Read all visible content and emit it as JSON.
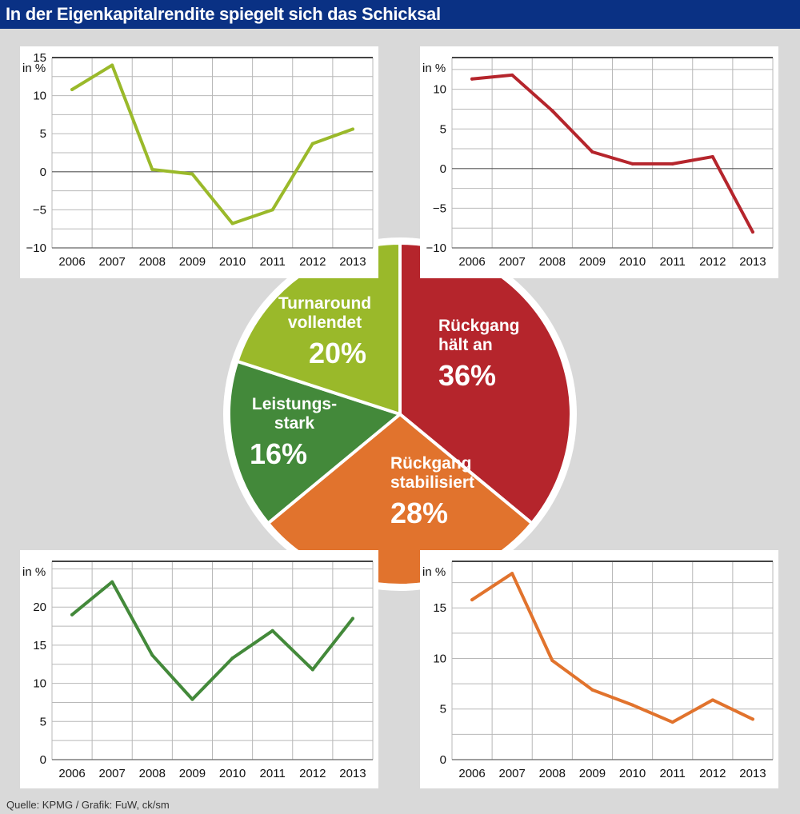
{
  "header": {
    "title": "In der Eigenkapitalrendite spiegelt sich das Schicksal",
    "bar_color": "#0a3184"
  },
  "source": "Quelle: KPMG / Grafik: FuW, ck/sm",
  "chart_data": [
    {
      "type": "pie",
      "title": "",
      "slices": [
        {
          "label_lines": [
            "Rückgang",
            "hält an"
          ],
          "value": 36,
          "value_label": "36%",
          "color": "#b5252c"
        },
        {
          "label_lines": [
            "Rückgang",
            "stabilisiert"
          ],
          "value": 28,
          "value_label": "28%",
          "color": "#e1732d"
        },
        {
          "label_lines": [
            "Leistungs-",
            "stark"
          ],
          "value": 16,
          "value_label": "16%",
          "color": "#43893a"
        },
        {
          "label_lines": [
            "Turnaround",
            "vollendet"
          ],
          "value": 20,
          "value_label": "20%",
          "color": "#9ab92a"
        }
      ]
    },
    {
      "type": "line",
      "name": "Turnaround vollendet",
      "ylabel": "in %",
      "x": [
        "2006",
        "2007",
        "2008",
        "2009",
        "2010",
        "2011",
        "2012",
        "2013"
      ],
      "values": [
        10.8,
        14,
        0.3,
        -0.3,
        -6.8,
        -5,
        3.7,
        5.6
      ],
      "ylim": [
        -10,
        15
      ],
      "yticks": [
        15,
        10,
        5,
        0,
        -5,
        -10
      ],
      "ytick_labels": [
        "15",
        "10",
        "5",
        "0",
        "−5",
        "−10"
      ],
      "color": "#9ab92a",
      "zero_line": true
    },
    {
      "type": "line",
      "name": "Rückgang hält an",
      "ylabel": "in %",
      "x": [
        "2006",
        "2007",
        "2008",
        "2009",
        "2010",
        "2011",
        "2012",
        "2013"
      ],
      "values": [
        11.3,
        11.8,
        7.3,
        2.1,
        0.6,
        0.6,
        1.5,
        -8
      ],
      "ylim": [
        -10,
        14
      ],
      "yticks": [
        10,
        5,
        0,
        -5,
        -10
      ],
      "ytick_labels": [
        "10",
        "5",
        "0",
        "−5",
        "−10"
      ],
      "color": "#b5252c",
      "zero_line": true
    },
    {
      "type": "line",
      "name": "Leistungsstark",
      "ylabel": "in %",
      "x": [
        "2006",
        "2007",
        "2008",
        "2009",
        "2010",
        "2011",
        "2012",
        "2013"
      ],
      "values": [
        19,
        23.3,
        13.7,
        7.9,
        13.3,
        16.9,
        11.8,
        18.5
      ],
      "ylim": [
        0,
        26
      ],
      "yticks": [
        20,
        15,
        10,
        5,
        0
      ],
      "ytick_labels": [
        "20",
        "15",
        "10",
        "5",
        "0"
      ],
      "color": "#43893a",
      "zero_line": false
    },
    {
      "type": "line",
      "name": "Rückgang stabilisiert",
      "ylabel": "in %",
      "x": [
        "2006",
        "2007",
        "2008",
        "2009",
        "2010",
        "2011",
        "2012",
        "2013"
      ],
      "values": [
        15.8,
        18.4,
        9.8,
        6.9,
        5.4,
        3.7,
        5.9,
        4
      ],
      "ylim": [
        0,
        19.6
      ],
      "yticks": [
        15,
        10,
        5,
        0
      ],
      "ytick_labels": [
        "15",
        "10",
        "5",
        "0"
      ],
      "color": "#e1732d",
      "zero_line": false
    }
  ]
}
